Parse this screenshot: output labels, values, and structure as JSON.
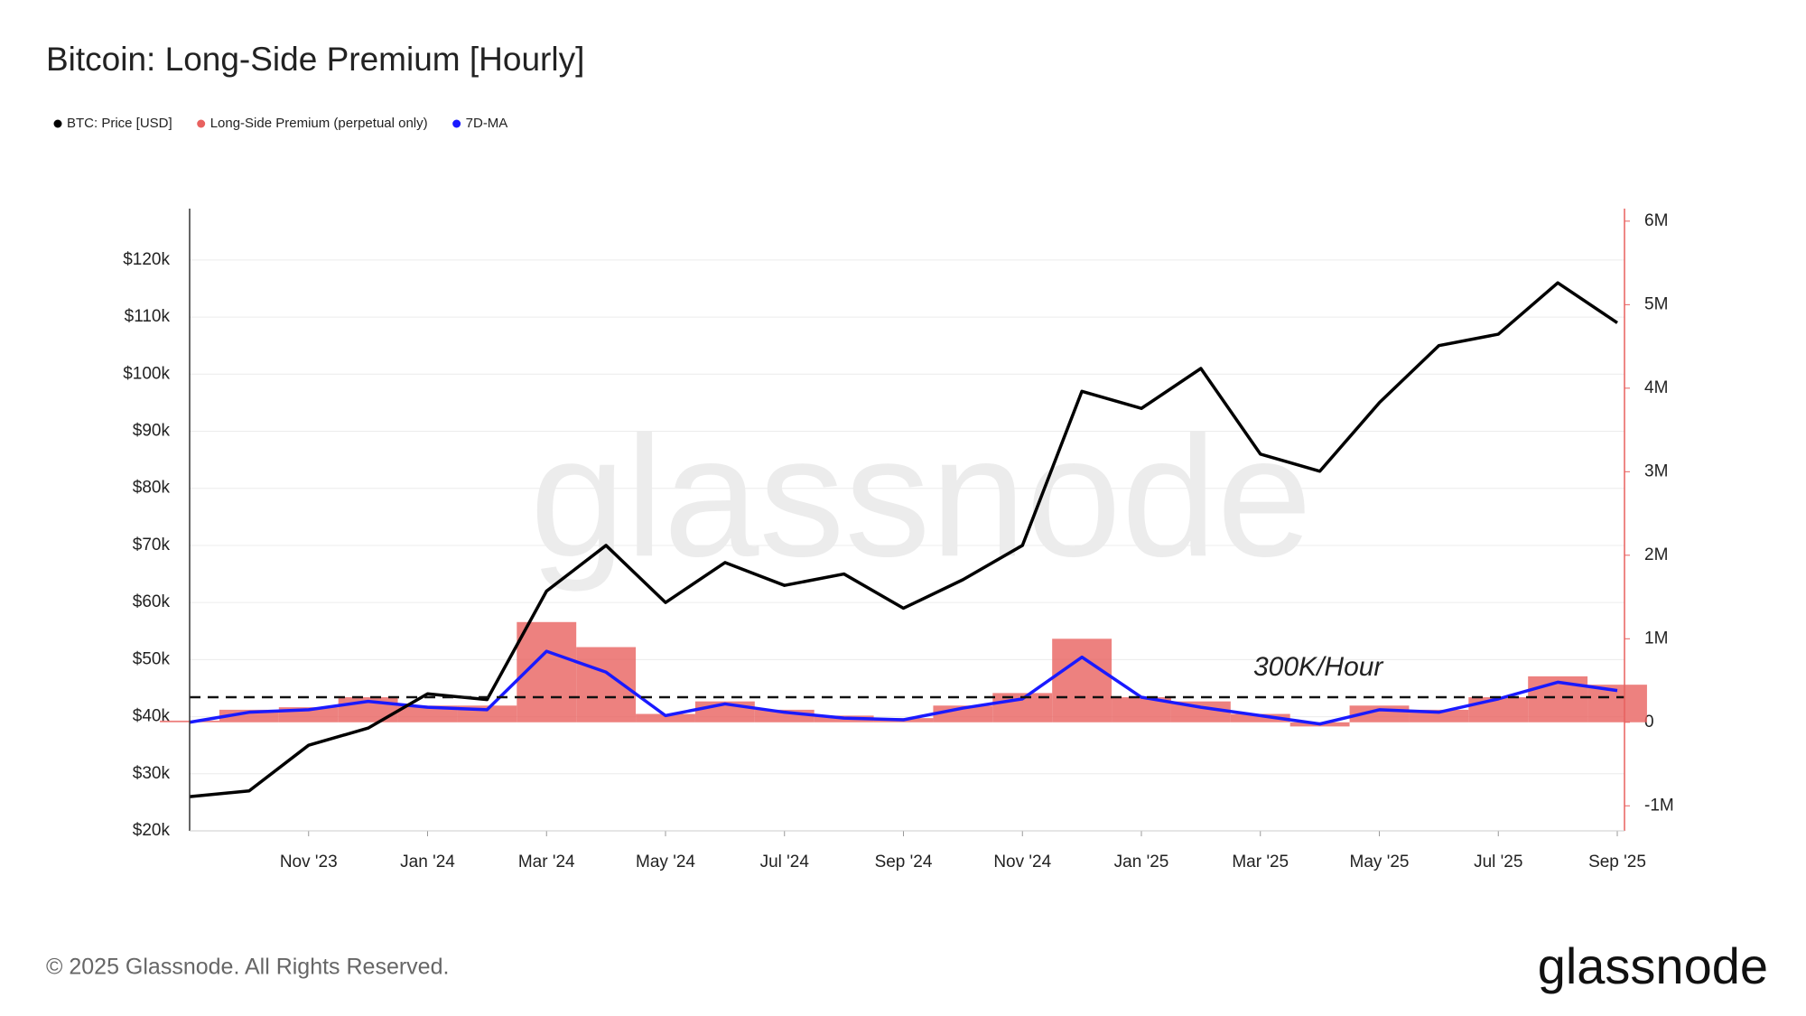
{
  "chart_data": {
    "type": "combo",
    "title": "Bitcoin: Long-Side Premium [Hourly]",
    "x": [
      "2023-09",
      "2023-10",
      "2023-11",
      "2023-12",
      "2024-01",
      "2024-02",
      "2024-03",
      "2024-04",
      "2024-05",
      "2024-06",
      "2024-07",
      "2024-08",
      "2024-09",
      "2024-10",
      "2024-11",
      "2024-12",
      "2025-01",
      "2025-02",
      "2025-03",
      "2025-04",
      "2025-05",
      "2025-06",
      "2025-07",
      "2025-08",
      "2025-09"
    ],
    "xlim": [
      "2023-09",
      "2025-09"
    ],
    "xticks": [
      {
        "value": "2023-11",
        "label": "Nov '23"
      },
      {
        "value": "2024-01",
        "label": "Jan '24"
      },
      {
        "value": "2024-03",
        "label": "Mar '24"
      },
      {
        "value": "2024-05",
        "label": "May '24"
      },
      {
        "value": "2024-07",
        "label": "Jul '24"
      },
      {
        "value": "2024-09",
        "label": "Sep '24"
      },
      {
        "value": "2024-11",
        "label": "Nov '24"
      },
      {
        "value": "2025-01",
        "label": "Jan '25"
      },
      {
        "value": "2025-03",
        "label": "Mar '25"
      },
      {
        "value": "2025-05",
        "label": "May '25"
      },
      {
        "value": "2025-07",
        "label": "Jul '25"
      },
      {
        "value": "2025-09",
        "label": "Sep '25"
      }
    ],
    "ylim": [
      20000,
      129000
    ],
    "yticks": [
      {
        "value": 20000,
        "label": "$20k"
      },
      {
        "value": 30000,
        "label": "$30k"
      },
      {
        "value": 40000,
        "label": "$40k"
      },
      {
        "value": 50000,
        "label": "$50k"
      },
      {
        "value": 60000,
        "label": "$60k"
      },
      {
        "value": 70000,
        "label": "$70k"
      },
      {
        "value": 80000,
        "label": "$80k"
      },
      {
        "value": 90000,
        "label": "$90k"
      },
      {
        "value": 100000,
        "label": "$100k"
      },
      {
        "value": 110000,
        "label": "$110k"
      },
      {
        "value": 120000,
        "label": "$120k"
      }
    ],
    "y2lim": [
      -1300000,
      6150000
    ],
    "y2ticks": [
      {
        "value": -1000000,
        "label": "-1M"
      },
      0,
      {
        "value": 1000000,
        "label": "1M"
      },
      {
        "value": 2000000,
        "label": "2M"
      },
      {
        "value": 3000000,
        "label": "3M"
      },
      {
        "value": 4000000,
        "label": "4M"
      },
      {
        "value": 5000000,
        "label": "5M"
      },
      {
        "value": 6000000,
        "label": "6M"
      }
    ],
    "grid": true,
    "series": [
      {
        "name": "BTC: Price [USD]",
        "color": "#000000",
        "mark": "line",
        "values": [
          26000,
          27000,
          35000,
          38000,
          44000,
          43000,
          62000,
          70000,
          60000,
          67000,
          63000,
          65000,
          59000,
          64000,
          70000,
          97000,
          94000,
          101000,
          86000,
          83000,
          95000,
          105000,
          107000,
          116000,
          109000
        ]
      },
      {
        "name": "Long-Side Premium (perpetual only)",
        "color": "#e8615f",
        "mark": "bar",
        "axis": "y2",
        "values": [
          20000,
          150000,
          180000,
          300000,
          200000,
          200000,
          1200000,
          900000,
          100000,
          250000,
          150000,
          80000,
          50000,
          200000,
          350000,
          1000000,
          300000,
          250000,
          100000,
          -50000,
          200000,
          150000,
          300000,
          550000,
          450000
        ]
      },
      {
        "name": "7D-MA",
        "color": "#1a1aff",
        "mark": "line",
        "axis": "y2",
        "values": [
          0,
          120000,
          150000,
          250000,
          180000,
          150000,
          850000,
          600000,
          80000,
          220000,
          120000,
          50000,
          30000,
          170000,
          280000,
          780000,
          300000,
          180000,
          80000,
          -20000,
          150000,
          120000,
          280000,
          480000,
          380000
        ]
      }
    ],
    "annotations": [
      {
        "text": "300K/Hour",
        "value": 300000,
        "axis": "y2"
      }
    ],
    "watermark": "glassnode"
  },
  "footer": {
    "copyright": "© 2025 Glassnode. All Rights Reserved.",
    "logo": "glassnode"
  }
}
